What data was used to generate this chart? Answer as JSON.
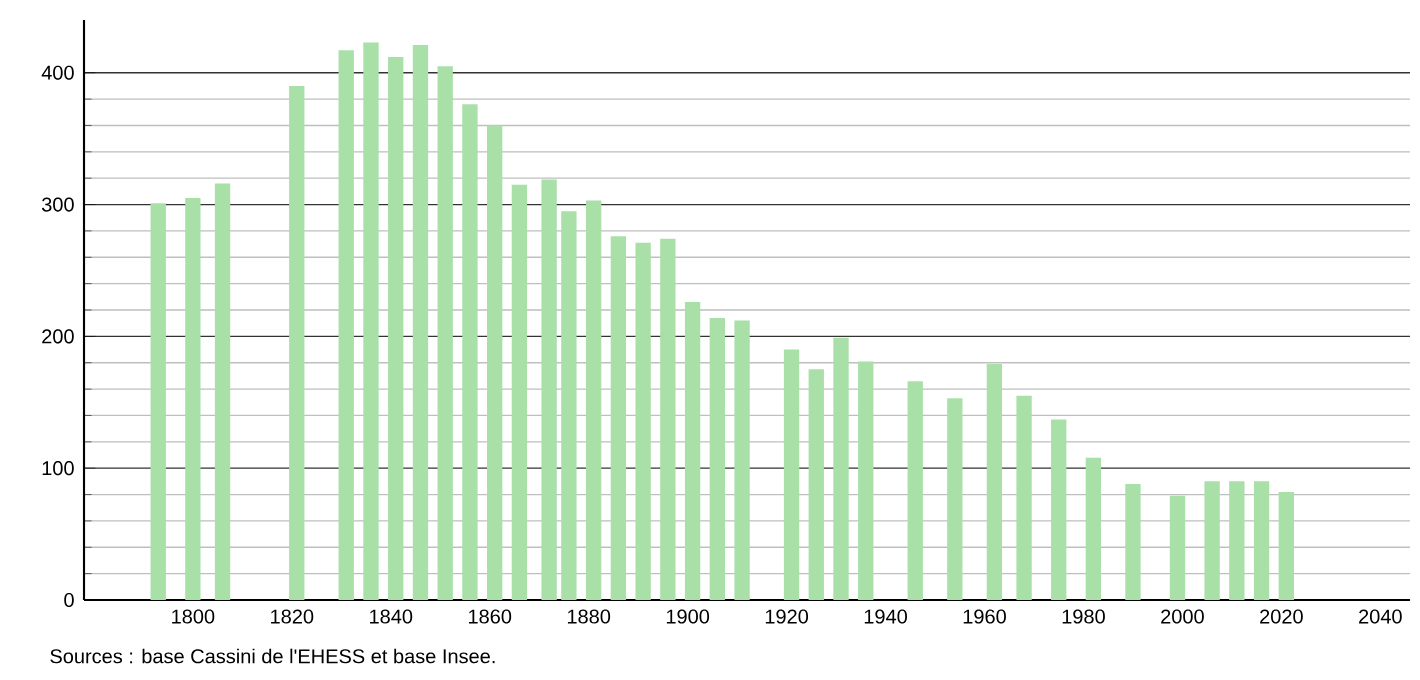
{
  "chart_data": {
    "type": "bar",
    "x": [
      1793,
      1800,
      1806,
      1821,
      1831,
      1836,
      1841,
      1846,
      1851,
      1856,
      1861,
      1866,
      1872,
      1876,
      1881,
      1886,
      1891,
      1896,
      1901,
      1906,
      1911,
      1921,
      1926,
      1931,
      1936,
      1946,
      1954,
      1962,
      1968,
      1975,
      1982,
      1990,
      1999,
      2006,
      2011,
      2016,
      2021
    ],
    "values": [
      301,
      305,
      316,
      390,
      417,
      423,
      412,
      421,
      405,
      376,
      360,
      315,
      319,
      295,
      303,
      276,
      271,
      274,
      226,
      214,
      212,
      190,
      175,
      199,
      181,
      166,
      153,
      179,
      155,
      137,
      108,
      88,
      79,
      90,
      90,
      90,
      82
    ],
    "color": "#a8e0a8",
    "xlim": [
      1778,
      2046
    ],
    "xticks": [
      1800,
      1820,
      1840,
      1860,
      1880,
      1900,
      1920,
      1940,
      1960,
      1980,
      2000,
      2020,
      2040
    ],
    "ylim": [
      0,
      440
    ],
    "yticks": [
      0,
      100,
      200,
      300,
      400
    ],
    "grid": "y",
    "annotations": [
      "Sources : base Cassini de l'EHESS et base Insee."
    ]
  }
}
